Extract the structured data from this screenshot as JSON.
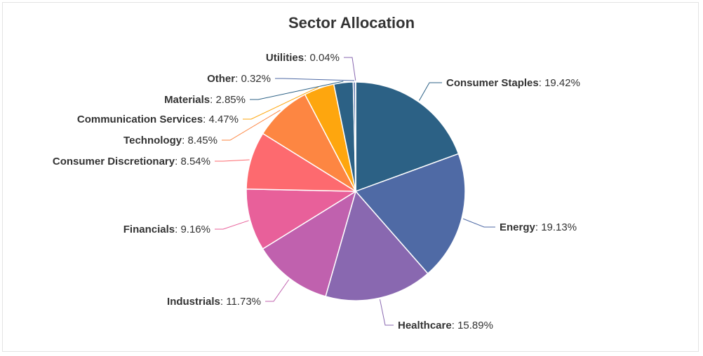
{
  "chart_data": {
    "type": "pie",
    "title": "Sector Allocation",
    "unit": "%",
    "slices": [
      {
        "name": "Consumer Staples",
        "value": 19.42,
        "label_value": "19.42%",
        "color": "#2c6185"
      },
      {
        "name": "Energy",
        "value": 19.13,
        "label_value": "19.13%",
        "color": "#4f6aa5"
      },
      {
        "name": "Healthcare",
        "value": 15.89,
        "label_value": "15.89%",
        "color": "#8968b0"
      },
      {
        "name": "Industrials",
        "value": 11.73,
        "label_value": "11.73%",
        "color": "#c061ae"
      },
      {
        "name": "Financials",
        "value": 9.16,
        "label_value": "9.16%",
        "color": "#e8609a"
      },
      {
        "name": "Consumer Discretionary",
        "value": 8.54,
        "label_value": "8.54%",
        "color": "#fd6a6f"
      },
      {
        "name": "Technology",
        "value": 8.45,
        "label_value": "8.45%",
        "color": "#fd8642"
      },
      {
        "name": "Communication Services",
        "value": 4.47,
        "label_value": "4.47%",
        "color": "#fea60e"
      },
      {
        "name": "Materials",
        "value": 2.85,
        "label_value": "2.85%",
        "color": "#2c6185"
      },
      {
        "name": "Other",
        "value": 0.32,
        "label_value": "0.32%",
        "color": "#4f6aa5"
      },
      {
        "name": "Utilities",
        "value": 0.04,
        "label_value": "0.04%",
        "color": "#8968b0"
      }
    ],
    "legend": "none",
    "data_labels": "outside with connectors"
  }
}
